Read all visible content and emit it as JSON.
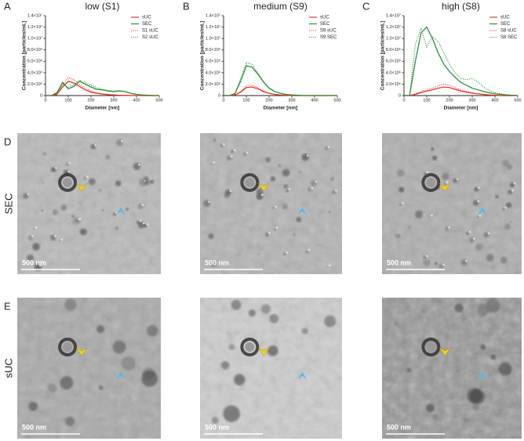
{
  "chart_data": [
    {
      "type": "line",
      "panel": "A",
      "title": "low (S1)",
      "xlabel": "Diameter [nm]",
      "ylabel": "Concentration [particles/mL]",
      "xlim": [
        0,
        500
      ],
      "xticks": [
        0,
        100,
        200,
        300,
        400,
        500
      ],
      "ylim": [
        0,
        14000000
      ],
      "yticks": [
        0,
        {
          "value": 2000000,
          "label": "2.0×10⁶"
        },
        {
          "value": 4000000,
          "label": "4.0×10⁶"
        },
        {
          "value": 6000000,
          "label": "6.0×10⁶"
        },
        {
          "value": 8000000,
          "label": "8.0×10⁶"
        },
        {
          "value": 10000000,
          "label": "1.0×10⁷"
        },
        {
          "value": 12000000,
          "label": "1.2×10⁷"
        },
        {
          "value": 14000000,
          "label": "1.4×10⁷"
        }
      ],
      "x": [
        0,
        25,
        50,
        75,
        100,
        125,
        150,
        175,
        200,
        225,
        250,
        275,
        300,
        325,
        350,
        375,
        400,
        425,
        450,
        475,
        500
      ],
      "series": [
        {
          "name": "sUC",
          "color": "#e3261c",
          "line_style": "solid",
          "values": [
            0,
            0,
            200000,
            1500000,
            2500000,
            2200000,
            1600000,
            1000000,
            600000,
            400000,
            250000,
            150000,
            100000,
            50000,
            30000,
            20000,
            10000,
            0,
            0,
            0,
            0
          ]
        },
        {
          "name": "SEC",
          "color": "#1e8a2c",
          "line_style": "solid",
          "values": [
            0,
            0,
            500000,
            2300000,
            1200000,
            1600000,
            2500000,
            2000000,
            1500000,
            1100000,
            1000000,
            800000,
            700000,
            800000,
            700000,
            400000,
            200000,
            100000,
            50000,
            0,
            0
          ]
        },
        {
          "name": "S1 sUC",
          "color": "#e3261c",
          "line_style": "dotted",
          "values": [
            0,
            0,
            300000,
            1800000,
            3200000,
            2800000,
            2000000,
            1300000,
            800000,
            500000,
            300000,
            200000,
            100000,
            50000,
            20000,
            0,
            0,
            0,
            0,
            0,
            0
          ]
        },
        {
          "name": "S2 sUC",
          "color": "#1e8a2c",
          "line_style": "dotted",
          "values": [
            0,
            0,
            400000,
            2000000,
            1500000,
            1900000,
            2700000,
            2300000,
            1800000,
            1400000,
            1100000,
            900000,
            800000,
            900000,
            700000,
            400000,
            200000,
            100000,
            50000,
            0,
            0
          ]
        }
      ]
    },
    {
      "type": "line",
      "panel": "B",
      "title": "medium (S9)",
      "xlabel": "Diameter [nm]",
      "ylabel": "Concentration [particles/mL]",
      "xlim": [
        0,
        500
      ],
      "xticks": [
        0,
        100,
        200,
        300,
        400,
        500
      ],
      "ylim": [
        0,
        14000000
      ],
      "yticks": [
        0,
        {
          "value": 2000000,
          "label": "2.0×10⁶"
        },
        {
          "value": 4000000,
          "label": "4.0×10⁶"
        },
        {
          "value": 6000000,
          "label": "6.0×10⁶"
        },
        {
          "value": 8000000,
          "label": "8.0×10⁶"
        },
        {
          "value": 10000000,
          "label": "1.0×10⁷"
        },
        {
          "value": 12000000,
          "label": "1.2×10⁷"
        },
        {
          "value": 14000000,
          "label": "1.4×10⁷"
        }
      ],
      "x": [
        0,
        25,
        50,
        75,
        100,
        125,
        150,
        175,
        200,
        225,
        250,
        275,
        300,
        325,
        350,
        375,
        400,
        425,
        450,
        475,
        500
      ],
      "series": [
        {
          "name": "sUC",
          "color": "#e3261c",
          "line_style": "solid",
          "values": [
            0,
            0,
            100000,
            600000,
            1400000,
            1500000,
            1200000,
            700000,
            400000,
            200000,
            100000,
            50000,
            0,
            0,
            0,
            0,
            0,
            0,
            0,
            0,
            0
          ]
        },
        {
          "name": "SEC",
          "color": "#1e8a2c",
          "line_style": "solid",
          "values": [
            0,
            0,
            300000,
            2500000,
            5200000,
            5000000,
            3800000,
            2400000,
            1300000,
            700000,
            400000,
            200000,
            100000,
            50000,
            0,
            0,
            0,
            0,
            0,
            0,
            0
          ]
        },
        {
          "name": "S9 sUC",
          "color": "#e3261c",
          "line_style": "dotted",
          "values": [
            0,
            0,
            100000,
            700000,
            1700000,
            1800000,
            1400000,
            800000,
            400000,
            200000,
            100000,
            50000,
            0,
            0,
            0,
            0,
            0,
            0,
            0,
            0,
            0
          ]
        },
        {
          "name": "S9 SEC",
          "color": "#1e8a2c",
          "line_style": "dotted",
          "values": [
            0,
            0,
            400000,
            3000000,
            5800000,
            5500000,
            4000000,
            2500000,
            1400000,
            700000,
            400000,
            200000,
            100000,
            50000,
            0,
            0,
            0,
            0,
            0,
            0,
            0
          ]
        }
      ]
    },
    {
      "type": "line",
      "panel": "C",
      "title": "high (S8)",
      "xlabel": "Diameter [nm]",
      "ylabel": "Concentration [particles/mL]",
      "xlim": [
        0,
        500
      ],
      "xticks": [
        0,
        100,
        200,
        300,
        400,
        500
      ],
      "ylim": [
        0,
        14000000
      ],
      "yticks": [
        0,
        {
          "value": 2000000,
          "label": "2.0×10⁶"
        },
        {
          "value": 4000000,
          "label": "4.0×10⁶"
        },
        {
          "value": 6000000,
          "label": "6.0×10⁶"
        },
        {
          "value": 8000000,
          "label": "8.0×10⁶"
        },
        {
          "value": 10000000,
          "label": "1.0×10⁷"
        },
        {
          "value": 12000000,
          "label": "1.2×10⁷"
        },
        {
          "value": 14000000,
          "label": "1.4×10⁷"
        }
      ],
      "x": [
        0,
        25,
        50,
        75,
        100,
        125,
        150,
        175,
        200,
        225,
        250,
        275,
        300,
        325,
        350,
        375,
        400,
        425,
        450,
        475,
        500
      ],
      "series": [
        {
          "name": "sUC",
          "color": "#e3261c",
          "line_style": "solid",
          "values": [
            0,
            0,
            200000,
            500000,
            800000,
            1000000,
            1300000,
            1500000,
            1400000,
            1100000,
            800000,
            600000,
            400000,
            300000,
            200000,
            100000,
            50000,
            0,
            0,
            0,
            0
          ]
        },
        {
          "name": "SEC",
          "color": "#1e8a2c",
          "line_style": "solid",
          "values": [
            0,
            0,
            6000000,
            11000000,
            12000000,
            10000000,
            7500000,
            5500000,
            4200000,
            3200000,
            2300000,
            1800000,
            1300000,
            1000000,
            700000,
            500000,
            300000,
            200000,
            100000,
            50000,
            0
          ]
        },
        {
          "name": "S8 sUC",
          "color": "#e3261c",
          "line_style": "dotted",
          "values": [
            0,
            0,
            300000,
            700000,
            1000000,
            1300000,
            1700000,
            2000000,
            1800000,
            1400000,
            1000000,
            700000,
            500000,
            300000,
            200000,
            100000,
            50000,
            0,
            0,
            0,
            0
          ]
        },
        {
          "name": "S8 SEC",
          "color": "#1e8a2c",
          "line_style": "dotted",
          "values": [
            0,
            0,
            9000000,
            11800000,
            8500000,
            10300000,
            9500000,
            7500000,
            5500000,
            4000000,
            3000000,
            2800000,
            3000000,
            2400000,
            1500000,
            900000,
            500000,
            300000,
            150000,
            50000,
            0
          ]
        }
      ]
    }
  ],
  "micrographs": {
    "rows": [
      {
        "panel": "D",
        "label": "SEC"
      },
      {
        "panel": "E",
        "label": "sUC"
      }
    ],
    "scale_bar": "500 nm"
  }
}
